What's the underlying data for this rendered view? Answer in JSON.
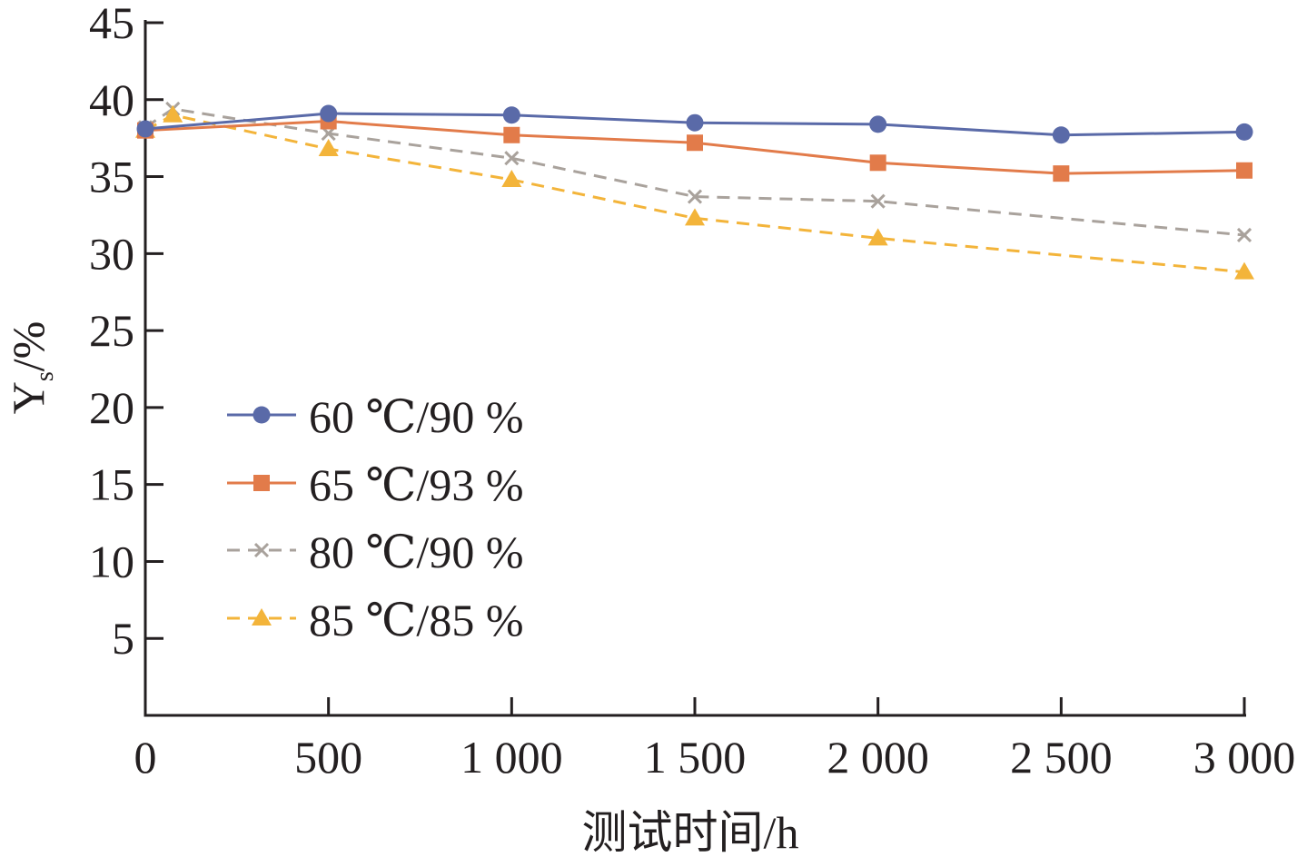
{
  "chart_data": {
    "type": "line",
    "xlabel": "测试时间/h",
    "ylabel": "Y",
    "ylabel_subscript": "s",
    "ylabel_unit": "/%",
    "xlim": [
      0,
      3000
    ],
    "ylim": [
      0,
      45
    ],
    "x_ticks": [
      0,
      500,
      1000,
      1500,
      2000,
      2500,
      3000
    ],
    "x_tick_labels": [
      "0",
      "500",
      "1 000",
      "1 500",
      "2 000",
      "2 500",
      "3 000"
    ],
    "y_ticks": [
      5,
      10,
      15,
      20,
      25,
      30,
      35,
      40,
      45
    ],
    "y_tick_labels": [
      "5",
      "10",
      "15",
      "20",
      "25",
      "30",
      "35",
      "40",
      "45"
    ],
    "grid": false,
    "legend_position": "center-left",
    "series": [
      {
        "name": "60 ℃/90 %",
        "color": "#5a6aa8",
        "marker": "circle",
        "dash": "solid",
        "x": [
          0,
          500,
          1000,
          1500,
          2000,
          2500,
          3000
        ],
        "y": [
          38.1,
          39.1,
          39.0,
          38.5,
          38.4,
          37.7,
          37.9
        ]
      },
      {
        "name": "65 ℃/93 %",
        "color": "#e27b4a",
        "marker": "square",
        "dash": "solid",
        "x": [
          0,
          500,
          1000,
          1500,
          2000,
          2500,
          3000
        ],
        "y": [
          38.0,
          38.6,
          37.7,
          37.2,
          35.9,
          35.2,
          35.4
        ]
      },
      {
        "name": "80 ℃/90 %",
        "color": "#a9a29c",
        "marker": "x",
        "dash": "dashed",
        "x": [
          0,
          75,
          500,
          1000,
          1500,
          2000,
          3000
        ],
        "y": [
          38.2,
          39.4,
          37.8,
          36.2,
          33.7,
          33.4,
          31.2
        ]
      },
      {
        "name": "85 ℃/85 %",
        "color": "#f3b43a",
        "marker": "triangle",
        "dash": "dashed",
        "x": [
          0,
          75,
          500,
          1000,
          1500,
          2000,
          3000
        ],
        "y": [
          38.0,
          39.0,
          36.8,
          34.8,
          32.3,
          31.0,
          28.8
        ]
      }
    ]
  }
}
